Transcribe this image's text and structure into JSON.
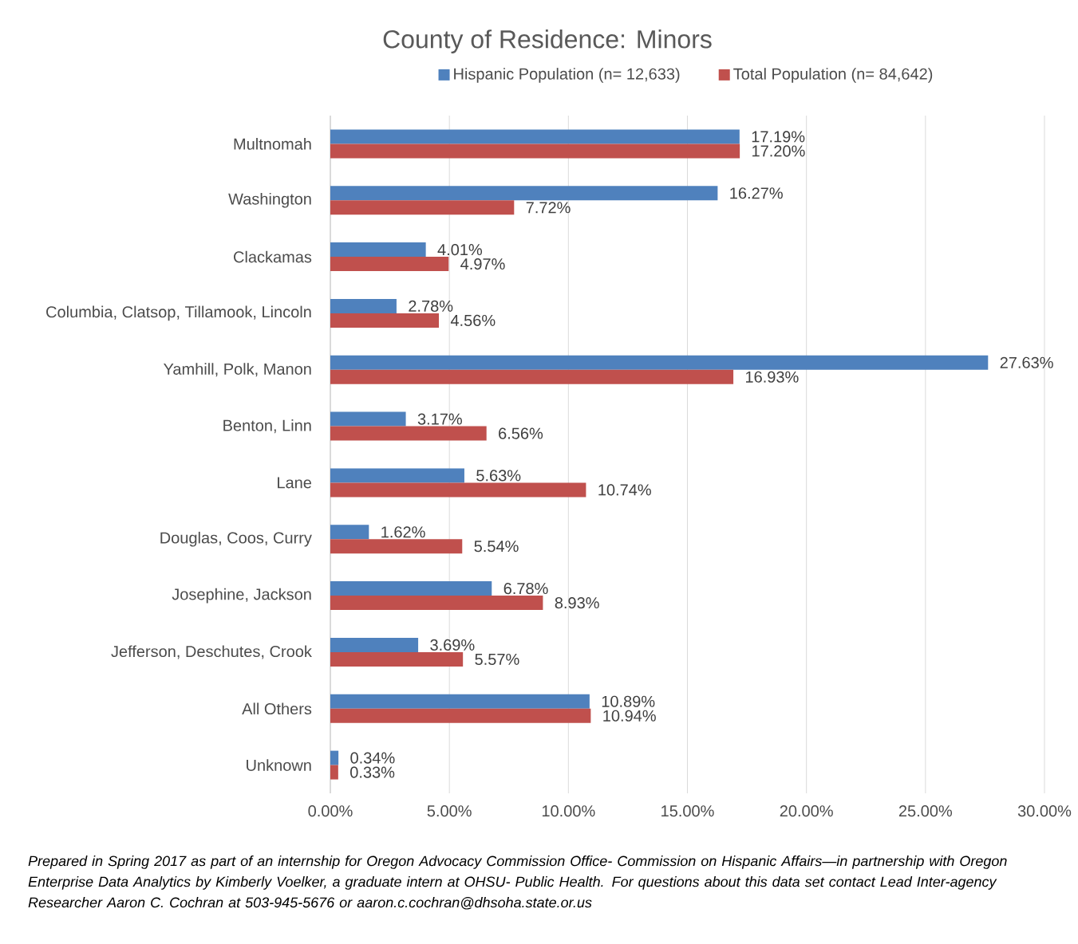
{
  "chart_data": {
    "type": "bar",
    "orientation": "horizontal",
    "title": "County of Residence: Minors",
    "categories": [
      "Multnomah",
      "Washington",
      "Clackamas",
      "Columbia, Clatsop, Tillamook, Lincoln",
      "Yamhill, Polk, Manon",
      "Benton, Linn",
      "Lane",
      "Douglas, Coos, Curry",
      "Josephine, Jackson",
      "Jefferson, Deschutes, Crook",
      "All Others",
      "Unknown"
    ],
    "series": [
      {
        "name": "Hispanic Population (n= 12,633)",
        "color": "#4f81bd",
        "values": [
          17.19,
          16.27,
          4.01,
          2.78,
          27.63,
          3.17,
          5.63,
          1.62,
          6.78,
          3.69,
          10.89,
          0.34
        ],
        "value_labels": [
          "17.19%",
          "16.27%",
          "4.01%",
          "2.78%",
          "27.63%",
          "3.17%",
          "5.63%",
          "1.62%",
          "6.78%",
          "3.69%",
          "10.89%",
          "0.34%"
        ]
      },
      {
        "name": "Total Population (n= 84,642)",
        "color": "#c0504d",
        "values": [
          17.2,
          7.72,
          4.97,
          4.56,
          16.93,
          6.56,
          10.74,
          5.54,
          8.93,
          5.57,
          10.94,
          0.33
        ],
        "value_labels": [
          "17.20%",
          "7.72%",
          "4.97%",
          "4.56%",
          "16.93%",
          "6.56%",
          "10.74%",
          "5.54%",
          "8.93%",
          "5.57%",
          "10.94%",
          "0.33%"
        ]
      }
    ],
    "xlim": [
      0,
      30
    ],
    "xticks": [
      {
        "value": 0,
        "label": "0.00%"
      },
      {
        "value": 5,
        "label": "5.00%"
      },
      {
        "value": 10,
        "label": "10.00%"
      },
      {
        "value": 15,
        "label": "15.00%"
      },
      {
        "value": 20,
        "label": "20.00%"
      },
      {
        "value": 25,
        "label": "25.00%"
      },
      {
        "value": 30,
        "label": "30.00%"
      }
    ],
    "grid": "x",
    "legend": "top",
    "annotations": [
      "*Prepared in Spring 2017 as part of an internship for Oregon Advocacy Commission Office- Commission on Hispanic Affairs—in partnership with Oregon Enterprise Data Analytics by Kimberly Voelker, a graduate intern at OHSU- Public Health. For questions about this data set contact Lead Inter-agency Researcher Aaron C. Cochran at 503-945-5676 or aaron.c.cochran@dhsoha.state.or.us*"
    ]
  }
}
